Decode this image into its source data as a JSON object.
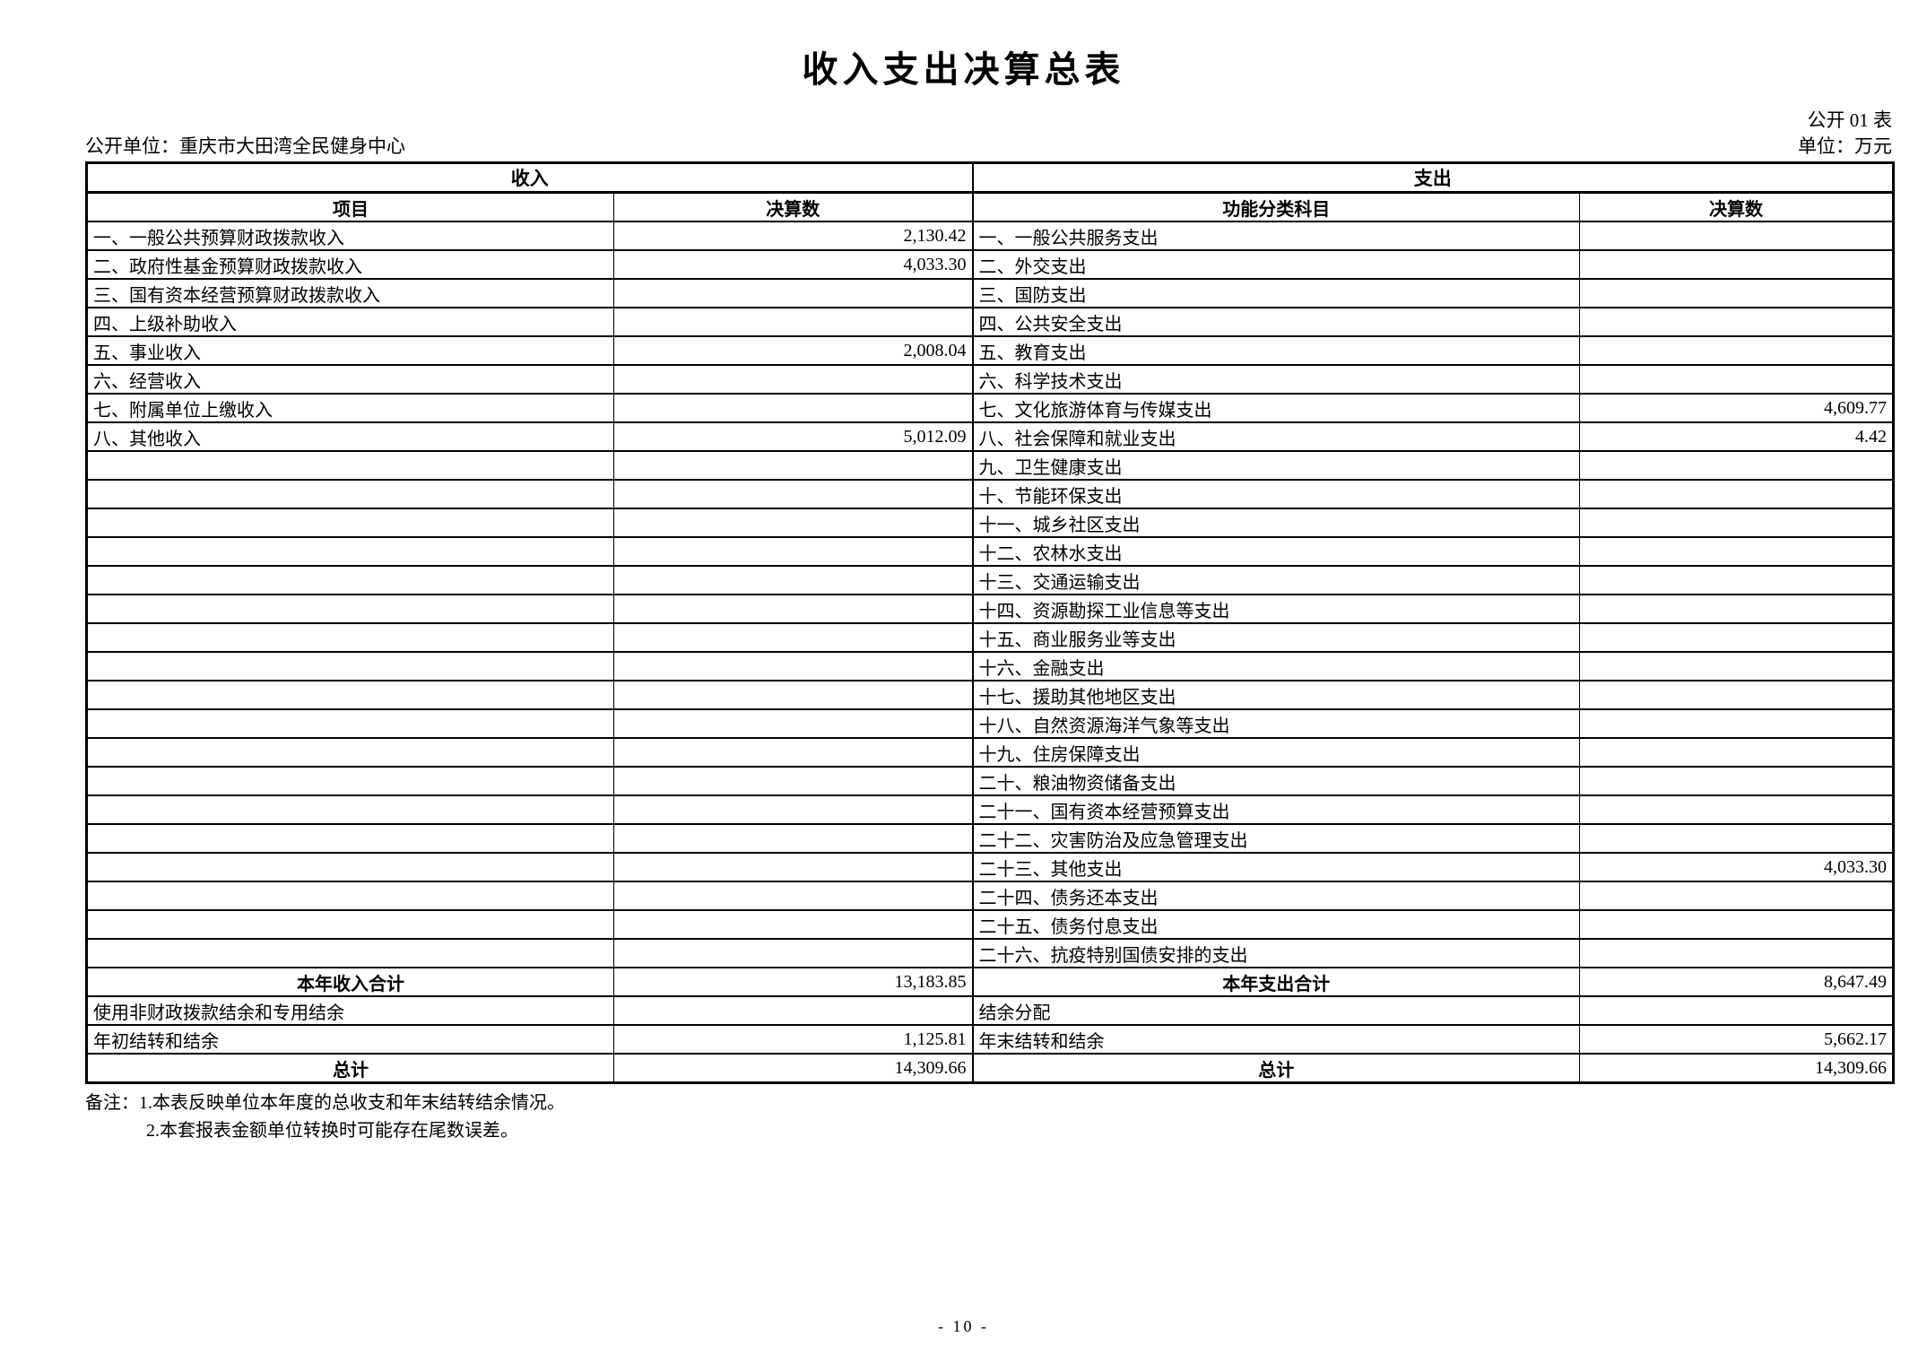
{
  "page": {
    "title": "收入支出决算总表",
    "table_no": "公开 01 表",
    "publish_unit": "公开单位：重庆市大田湾全民健身中心",
    "unit_of_measure": "单位：万元",
    "page_number": "- 10 -"
  },
  "table": {
    "revenue_header": "收入",
    "expenditure_header": "支出",
    "columns": {
      "item": "项目",
      "amount": "决算数",
      "func": "功能分类科目",
      "amount2": "决算数"
    },
    "rows": [
      {
        "left_item": "一、一般公共预算财政拨款收入",
        "left_value": "2,130.42",
        "right_item": "一、一般公共服务支出",
        "right_value": ""
      },
      {
        "left_item": "二、政府性基金预算财政拨款收入",
        "left_value": "4,033.30",
        "right_item": "二、外交支出",
        "right_value": ""
      },
      {
        "left_item": "三、国有资本经营预算财政拨款收入",
        "left_value": "",
        "right_item": "三、国防支出",
        "right_value": ""
      },
      {
        "left_item": "四、上级补助收入",
        "left_value": "",
        "right_item": "四、公共安全支出",
        "right_value": ""
      },
      {
        "left_item": "五、事业收入",
        "left_value": "2,008.04",
        "right_item": "五、教育支出",
        "right_value": ""
      },
      {
        "left_item": "六、经营收入",
        "left_value": "",
        "right_item": "六、科学技术支出",
        "right_value": ""
      },
      {
        "left_item": "七、附属单位上缴收入",
        "left_value": "",
        "right_item": "七、文化旅游体育与传媒支出",
        "right_value": "4,609.77"
      },
      {
        "left_item": "八、其他收入",
        "left_value": "5,012.09",
        "right_item": "八、社会保障和就业支出",
        "right_value": "4.42"
      },
      {
        "left_item": "",
        "left_value": "",
        "right_item": "九、卫生健康支出",
        "right_value": ""
      },
      {
        "left_item": "",
        "left_value": "",
        "right_item": "十、节能环保支出",
        "right_value": ""
      },
      {
        "left_item": "",
        "left_value": "",
        "right_item": "十一、城乡社区支出",
        "right_value": ""
      },
      {
        "left_item": "",
        "left_value": "",
        "right_item": "十二、农林水支出",
        "right_value": ""
      },
      {
        "left_item": "",
        "left_value": "",
        "right_item": "十三、交通运输支出",
        "right_value": ""
      },
      {
        "left_item": "",
        "left_value": "",
        "right_item": "十四、资源勘探工业信息等支出",
        "right_value": ""
      },
      {
        "left_item": "",
        "left_value": "",
        "right_item": "十五、商业服务业等支出",
        "right_value": ""
      },
      {
        "left_item": "",
        "left_value": "",
        "right_item": "十六、金融支出",
        "right_value": ""
      },
      {
        "left_item": "",
        "left_value": "",
        "right_item": "十七、援助其他地区支出",
        "right_value": ""
      },
      {
        "left_item": "",
        "left_value": "",
        "right_item": "十八、自然资源海洋气象等支出",
        "right_value": ""
      },
      {
        "left_item": "",
        "left_value": "",
        "right_item": "十九、住房保障支出",
        "right_value": ""
      },
      {
        "left_item": "",
        "left_value": "",
        "right_item": "二十、粮油物资储备支出",
        "right_value": ""
      },
      {
        "left_item": "",
        "left_value": "",
        "right_item": "二十一、国有资本经营预算支出",
        "right_value": ""
      },
      {
        "left_item": "",
        "left_value": "",
        "right_item": "二十二、灾害防治及应急管理支出",
        "right_value": ""
      },
      {
        "left_item": "",
        "left_value": "",
        "right_item": "二十三、其他支出",
        "right_value": "4,033.30"
      },
      {
        "left_item": "",
        "left_value": "",
        "right_item": "二十四、债务还本支出",
        "right_value": ""
      },
      {
        "left_item": "",
        "left_value": "",
        "right_item": "二十五、债务付息支出",
        "right_value": ""
      },
      {
        "left_item": "",
        "left_value": "",
        "right_item": "二十六、抗疫特别国债安排的支出",
        "right_value": ""
      },
      {
        "left_item": "本年收入合计",
        "left_value": "13,183.85",
        "right_item": "本年支出合计",
        "right_value": "8,647.49",
        "emphasis": true
      },
      {
        "left_item": "使用非财政拨款结余和专用结余",
        "left_value": "",
        "right_item": "结余分配",
        "right_value": ""
      },
      {
        "left_item": "年初结转和结余",
        "left_value": "1,125.81",
        "right_item": "年末结转和结余",
        "right_value": "5,662.17"
      },
      {
        "left_item": "总计",
        "left_value": "14,309.66",
        "right_item": "总计",
        "right_value": "14,309.66",
        "emphasis": true
      }
    ]
  },
  "notes": [
    "备注：1.本表反映单位本年度的总收支和年末结转结余情况。",
    "2.本套报表金额单位转换时可能存在尾数误差。"
  ]
}
